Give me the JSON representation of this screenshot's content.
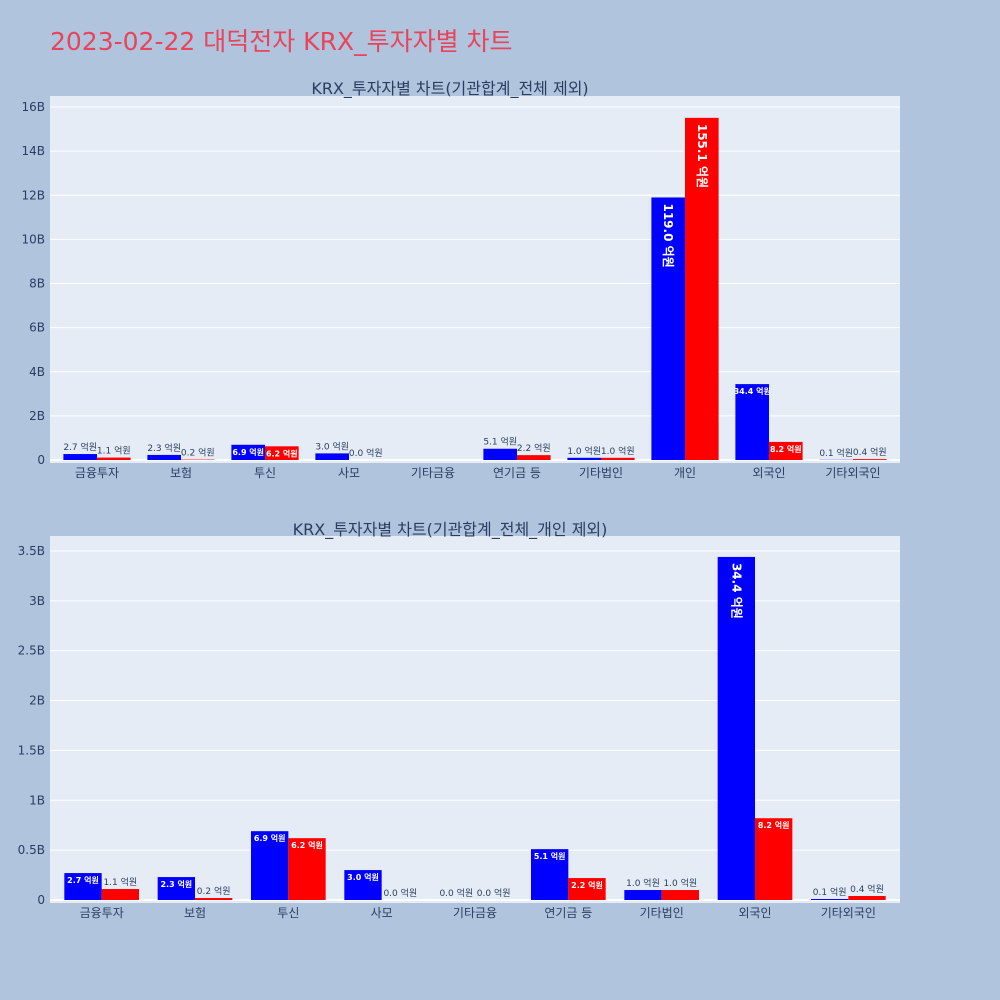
{
  "page": {
    "title": "2023-02-22 대덕전자 KRX_투자자별 차트"
  },
  "colors": {
    "background": "#b0c4de",
    "plot_bg": "#e5ecf6",
    "grid": "#ffffff",
    "title": "#e8445a",
    "series_buy": "#0000ff",
    "series_sell": "#ff0000",
    "text": "#2a3f5f"
  },
  "chart_data": [
    {
      "type": "bar",
      "title": "KRX_투자자별 차트(기관합계_전체 제외)",
      "categories": [
        "금융투자",
        "보험",
        "투신",
        "사모",
        "기타금융",
        "연기금 등",
        "기타법인",
        "개인",
        "외국인",
        "기타외국인"
      ],
      "series": [
        {
          "color": "#0000ff",
          "values": [
            270000000,
            230000000,
            690000000,
            300000000,
            0,
            510000000,
            100000000,
            11900000000,
            3440000000,
            10000000
          ],
          "labels": [
            "2.7 억원",
            "2.3 억원",
            "6.9 억원",
            "3.0 억원",
            "",
            "5.1 억원",
            "1.0 억원",
            "119.0 억원",
            "34.4 억원",
            "0.1 억원"
          ]
        },
        {
          "color": "#ff0000",
          "values": [
            110000000,
            20000000,
            620000000,
            0,
            0,
            220000000,
            100000000,
            15510000000,
            820000000,
            40000000
          ],
          "labels": [
            "1.1 억원",
            "0.2 억원",
            "6.2 억원",
            "0.0 억원",
            "",
            "2.2 억원",
            "1.0 억원",
            "155.1 억원",
            "8.2 억원",
            "0.4 억원"
          ]
        }
      ],
      "ylim": [
        0,
        16500000000
      ],
      "yticks": [
        0,
        2000000000,
        4000000000,
        6000000000,
        8000000000,
        10000000000,
        12000000000,
        14000000000,
        16000000000
      ],
      "ytick_labels": [
        "0",
        "2B",
        "4B",
        "6B",
        "8B",
        "10B",
        "12B",
        "14B",
        "16B"
      ],
      "grid": true,
      "legend": "none"
    },
    {
      "type": "bar",
      "title": "KRX_투자자별 차트(기관합계_전체_개인 제외)",
      "categories": [
        "금융투자",
        "보험",
        "투신",
        "사모",
        "기타금융",
        "연기금 등",
        "기타법인",
        "외국인",
        "기타외국인"
      ],
      "series": [
        {
          "color": "#0000ff",
          "values": [
            270000000,
            230000000,
            690000000,
            300000000,
            0,
            510000000,
            100000000,
            3440000000,
            10000000
          ],
          "labels": [
            "2.7 억원",
            "2.3 억원",
            "6.9 억원",
            "3.0 억원",
            "0.0 억원",
            "5.1 억원",
            "1.0 억원",
            "34.4 억원",
            "0.1 억원"
          ]
        },
        {
          "color": "#ff0000",
          "values": [
            110000000,
            20000000,
            620000000,
            0,
            0,
            220000000,
            100000000,
            820000000,
            40000000
          ],
          "labels": [
            "1.1 억원",
            "0.2 억원",
            "6.2 억원",
            "0.0 억원",
            "0.0 억원",
            "2.2 억원",
            "1.0 억원",
            "8.2 억원",
            "0.4 억원"
          ]
        }
      ],
      "ylim": [
        0,
        3650000000
      ],
      "yticks": [
        0,
        500000000,
        1000000000,
        1500000000,
        2000000000,
        2500000000,
        3000000000,
        3500000000
      ],
      "ytick_labels": [
        "0",
        "0.5B",
        "1B",
        "1.5B",
        "2B",
        "2.5B",
        "3B",
        "3.5B"
      ],
      "grid": true,
      "legend": "none"
    }
  ]
}
